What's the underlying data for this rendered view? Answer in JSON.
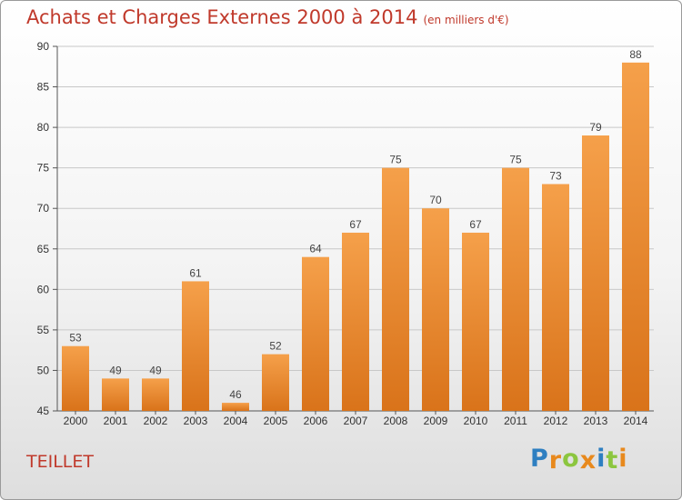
{
  "title": "Achats et Charges Externes 2000 à 2014",
  "unit": "(en milliers d'€)",
  "place": "TEILLET",
  "logo": {
    "text": "Proxiti",
    "letters": [
      {
        "ch": "P",
        "color": "#2e7fc1"
      },
      {
        "ch": "r",
        "color": "#e8891d"
      },
      {
        "ch": "o",
        "color": "#8cc63f"
      },
      {
        "ch": "x",
        "color": "#e8891d"
      },
      {
        "ch": "i",
        "color": "#2e7fc1"
      },
      {
        "ch": "t",
        "color": "#8cc63f"
      },
      {
        "ch": "i",
        "color": "#e8891d"
      }
    ]
  },
  "chart_data": {
    "type": "bar",
    "title": "Achats et Charges Externes 2000 à 2014",
    "xlabel": "",
    "ylabel": "",
    "categories": [
      "2000",
      "2001",
      "2002",
      "2003",
      "2004",
      "2005",
      "2006",
      "2007",
      "2008",
      "2009",
      "2010",
      "2011",
      "2012",
      "2013",
      "2014"
    ],
    "values": [
      53,
      49,
      49,
      61,
      46,
      52,
      64,
      67,
      75,
      70,
      67,
      75,
      73,
      79,
      88
    ],
    "ylim": [
      45,
      90
    ],
    "yticks": [
      45,
      50,
      55,
      60,
      65,
      70,
      75,
      80,
      85,
      90
    ],
    "grid": true,
    "bar_color_top": "#f5a04a",
    "bar_color_bottom": "#d9731a"
  }
}
